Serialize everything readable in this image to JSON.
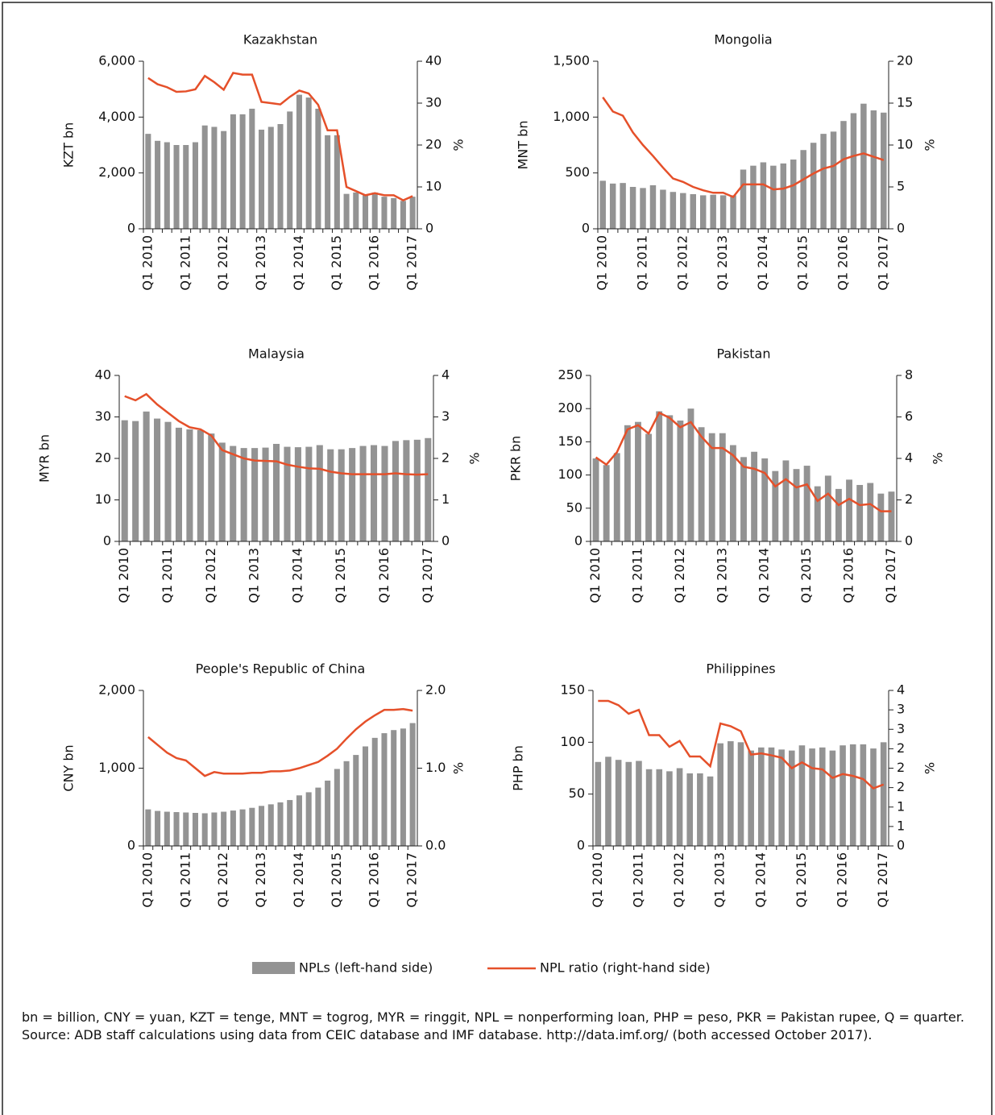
{
  "chart_data": [
    {
      "type": "combo",
      "title": "Kazakhstan",
      "ylabel": "KZT bn",
      "y2label": "%",
      "categories": [
        "Q1 2010",
        null,
        null,
        null,
        "Q1 2011",
        null,
        null,
        null,
        "Q1 2012",
        null,
        null,
        null,
        "Q1 2013",
        null,
        null,
        null,
        "Q1 2014",
        null,
        null,
        null,
        "Q1 2015",
        null,
        null,
        null,
        "Q1 2016",
        null,
        null,
        null,
        "Q1 2017"
      ],
      "ylim": [
        0,
        6000
      ],
      "yticks": [
        0,
        {
          "value": 2000,
          "label": "2,000"
        },
        {
          "value": 4000,
          "label": "4,000"
        },
        {
          "value": 6000,
          "label": "6,000"
        }
      ],
      "y2lim": [
        0,
        40
      ],
      "y2ticks": [
        0,
        10,
        20,
        30,
        40
      ],
      "series": [
        {
          "name": "NPLs (left-hand side)",
          "type": "bar",
          "color": "#939393",
          "values": [
            3400,
            3150,
            3100,
            3000,
            3000,
            3100,
            3700,
            3650,
            3500,
            4100,
            4100,
            4300,
            3550,
            3650,
            3750,
            4200,
            4800,
            4700,
            4300,
            3350,
            3350,
            1250,
            1300,
            1200,
            1300,
            1150,
            1100,
            1000,
            1150
          ]
        },
        {
          "name": "NPL ratio (right-hand side)",
          "type": "line",
          "axis": "y2",
          "color": "#e5502a",
          "values": [
            36,
            34.5,
            33.8,
            32.7,
            32.8,
            33.3,
            36.5,
            35,
            33.2,
            37.2,
            36.8,
            36.8,
            30.3,
            30,
            29.7,
            31.5,
            33,
            32.3,
            29.6,
            23.5,
            23.5,
            10,
            9,
            8,
            8.5,
            8,
            8,
            6.8,
            7.8
          ]
        }
      ]
    },
    {
      "type": "combo",
      "title": "Mongolia",
      "ylabel": "MNT bn",
      "y2label": "%",
      "categories": [
        "Q1 2010",
        null,
        null,
        null,
        "Q1 2011",
        null,
        null,
        null,
        "Q1 2012",
        null,
        null,
        null,
        "Q1 2013",
        null,
        null,
        null,
        "Q1 2014",
        null,
        null,
        null,
        "Q1 2015",
        null,
        null,
        null,
        "Q1 2016",
        null,
        null,
        null,
        "Q1 2017"
      ],
      "ylim": [
        0,
        1500
      ],
      "yticks": [
        0,
        500,
        {
          "value": 1000,
          "label": "1,000"
        },
        {
          "value": 1500,
          "label": "1,500"
        }
      ],
      "y2lim": [
        0,
        20
      ],
      "y2ticks": [
        0,
        5,
        10,
        15,
        20
      ],
      "series": [
        {
          "type": "bar",
          "color": "#939393",
          "values": [
            430,
            405,
            410,
            375,
            365,
            390,
            350,
            330,
            320,
            310,
            300,
            305,
            300,
            300,
            530,
            565,
            595,
            565,
            585,
            620,
            705,
            770,
            850,
            870,
            965,
            1035,
            1120,
            1060,
            1040
          ]
        },
        {
          "type": "line",
          "axis": "y2",
          "color": "#e5502a",
          "values": [
            15.7,
            14,
            13.5,
            11.5,
            10,
            8.7,
            7.3,
            6,
            5.6,
            5,
            4.6,
            4.3,
            4.3,
            3.8,
            5.3,
            5.3,
            5.3,
            4.7,
            4.8,
            5.2,
            5.9,
            6.6,
            7.2,
            7.5,
            8.3,
            8.7,
            9,
            8.6,
            8.2
          ]
        }
      ]
    },
    {
      "type": "combo",
      "title": "Malaysia",
      "ylabel": "MYR bn",
      "y2label": "%",
      "categories": [
        "Q1 2010",
        null,
        null,
        null,
        "Q1 2011",
        null,
        null,
        null,
        "Q1 2012",
        null,
        null,
        null,
        "Q1 2013",
        null,
        null,
        null,
        "Q1 2014",
        null,
        null,
        null,
        "Q1 2015",
        null,
        null,
        null,
        "Q1 2016",
        null,
        null,
        null,
        "Q1 2017"
      ],
      "ylim": [
        0,
        40
      ],
      "yticks": [
        0,
        10,
        20,
        30,
        40
      ],
      "y2lim": [
        0,
        4
      ],
      "y2ticks": [
        0,
        1,
        2,
        3,
        4
      ],
      "series": [
        {
          "type": "bar",
          "color": "#939393",
          "values": [
            29.2,
            29,
            31.3,
            29.6,
            28.8,
            27.4,
            27,
            26.8,
            26,
            23.8,
            23,
            22.5,
            22.5,
            22.6,
            23.5,
            22.8,
            22.7,
            22.8,
            23.2,
            22.2,
            22.2,
            22.5,
            23,
            23.2,
            23,
            24.2,
            24.4,
            24.5,
            24.9
          ]
        },
        {
          "type": "line",
          "axis": "y2",
          "color": "#e5502a",
          "values": [
            3.5,
            3.4,
            3.55,
            3.3,
            3.1,
            2.9,
            2.75,
            2.7,
            2.55,
            2.2,
            2.1,
            2,
            1.95,
            1.94,
            1.93,
            1.85,
            1.8,
            1.76,
            1.75,
            1.68,
            1.64,
            1.62,
            1.62,
            1.62,
            1.62,
            1.64,
            1.62,
            1.61,
            1.62
          ]
        }
      ]
    },
    {
      "type": "combo",
      "title": "Pakistan",
      "ylabel": "PKR bn",
      "y2label": "%",
      "categories": [
        "Q1 2010",
        null,
        null,
        null,
        "Q1 2011",
        null,
        null,
        null,
        "Q1 2012",
        null,
        null,
        null,
        "Q1 2013",
        null,
        null,
        null,
        "Q1 2014",
        null,
        null,
        null,
        "Q1 2015",
        null,
        null,
        null,
        "Q1 2016",
        null,
        null,
        null,
        "Q1 2017"
      ],
      "ylim": [
        0,
        250
      ],
      "yticks": [
        0,
        50,
        100,
        150,
        200,
        250
      ],
      "y2lim": [
        0,
        8
      ],
      "y2ticks": [
        0,
        2,
        4,
        6,
        8
      ],
      "series": [
        {
          "type": "bar",
          "color": "#939393",
          "values": [
            125,
            115,
            133,
            175,
            180,
            162,
            196,
            190,
            182,
            200,
            172,
            163,
            163,
            145,
            127,
            135,
            125,
            106,
            122,
            109,
            114,
            83,
            99,
            79,
            93,
            85,
            88,
            72,
            75
          ]
        },
        {
          "type": "line",
          "axis": "y2",
          "color": "#e5502a",
          "values": [
            4.05,
            3.7,
            4.3,
            5.4,
            5.6,
            5.2,
            6.2,
            5.95,
            5.5,
            5.75,
            5.05,
            4.5,
            4.5,
            4.15,
            3.6,
            3.5,
            3.3,
            2.65,
            3,
            2.6,
            2.75,
            1.95,
            2.3,
            1.75,
            2.05,
            1.75,
            1.8,
            1.45,
            1.45
          ]
        }
      ]
    },
    {
      "type": "combo",
      "title": "People's Republic of China",
      "ylabel": "CNY bn",
      "y2label": "%",
      "categories": [
        "Q1 2010",
        null,
        null,
        null,
        "Q1 2011",
        null,
        null,
        null,
        "Q1 2012",
        null,
        null,
        null,
        "Q1 2013",
        null,
        null,
        null,
        "Q1 2014",
        null,
        null,
        null,
        "Q1 2015",
        null,
        null,
        null,
        "Q1 2016",
        null,
        null,
        null,
        "Q1 2017"
      ],
      "ylim": [
        0,
        2000
      ],
      "yticks": [
        0,
        {
          "value": 1000,
          "label": "1,000"
        },
        {
          "value": 2000,
          "label": "2,000"
        }
      ],
      "y2lim": [
        0,
        2
      ],
      "y2ticks": [
        {
          "value": 0,
          "label": "0.0"
        },
        {
          "value": 1,
          "label": "1.0"
        },
        {
          "value": 2,
          "label": "2.0"
        }
      ],
      "series": [
        {
          "type": "bar",
          "color": "#939393",
          "values": [
            470,
            450,
            440,
            435,
            430,
            425,
            420,
            430,
            440,
            455,
            470,
            490,
            515,
            535,
            560,
            590,
            650,
            690,
            750,
            840,
            990,
            1090,
            1170,
            1280,
            1390,
            1450,
            1490,
            1510,
            1580
          ]
        },
        {
          "type": "line",
          "axis": "y2",
          "color": "#e5502a",
          "values": [
            1.4,
            1.3,
            1.2,
            1.13,
            1.1,
            1,
            0.9,
            0.95,
            0.93,
            0.93,
            0.93,
            0.94,
            0.94,
            0.96,
            0.96,
            0.97,
            1,
            1.04,
            1.08,
            1.16,
            1.25,
            1.38,
            1.5,
            1.6,
            1.68,
            1.75,
            1.75,
            1.76,
            1.74
          ]
        }
      ]
    },
    {
      "type": "combo",
      "title": "Philippines",
      "ylabel": "PHP bn",
      "y2label": "%",
      "categories": [
        "Q1 2010",
        null,
        null,
        null,
        "Q1 2011",
        null,
        null,
        null,
        "Q1 2012",
        null,
        null,
        null,
        "Q1 2013",
        null,
        null,
        null,
        "Q1 2014",
        null,
        null,
        null,
        "Q1 2015",
        null,
        null,
        null,
        "Q1 2016",
        null,
        null,
        null,
        "Q1 2017"
      ],
      "ylim": [
        0,
        150
      ],
      "yticks": [
        0,
        50,
        100,
        150
      ],
      "y2lim": [
        0,
        4
      ],
      "y2ticks": [
        0,
        {
          "value": 0.5,
          "label": "1"
        },
        1,
        {
          "value": 1.5,
          "label": "2"
        },
        2,
        {
          "value": 2.5,
          "label": "2"
        },
        3,
        {
          "value": 3.5,
          "label": "3"
        },
        4
      ],
      "series": [
        {
          "type": "bar",
          "color": "#939393",
          "values": [
            81,
            86,
            83,
            81,
            82,
            74,
            74,
            72,
            75,
            70,
            70,
            67,
            99,
            101,
            100,
            92,
            95,
            95,
            93,
            92,
            97,
            94,
            95,
            92,
            97,
            98,
            98,
            94,
            100
          ]
        },
        {
          "type": "line",
          "axis": "y2",
          "color": "#e5502a",
          "values": [
            3.73,
            3.73,
            3.62,
            3.4,
            3.5,
            2.85,
            2.85,
            2.55,
            2.7,
            2.3,
            2.3,
            2.05,
            3.15,
            3.08,
            2.95,
            2.35,
            2.38,
            2.33,
            2.27,
            2,
            2.15,
            2,
            1.97,
            1.75,
            1.85,
            1.8,
            1.72,
            1.48,
            1.58
          ]
        }
      ]
    }
  ],
  "notes": [
    "bn = billion, CNY = yuan, KZT = tenge, MNT = togrog, MYR = ringgit, NPL = nonperforming loan, PHP = peso, PKR = Pakistan rupee, Q = quarter.",
    "Source: ADB staff calculations using data from CEIC database and IMF database. http://data.imf.org/ (both accessed October 2017)."
  ]
}
